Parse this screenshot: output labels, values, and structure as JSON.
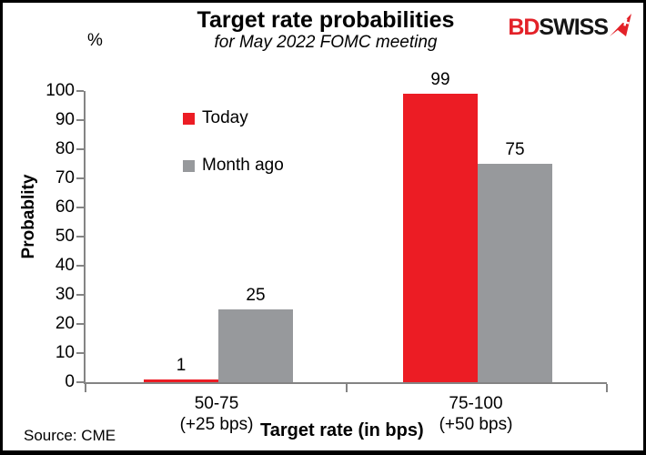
{
  "header": {
    "title": "Target rate probabilities",
    "subtitle": "for May 2022 FOMC meeting"
  },
  "logo": {
    "part1": "BD",
    "part2": "SWISS",
    "part1_color": "#e32128",
    "part2_color": "#151515"
  },
  "chart_data": {
    "type": "bar",
    "title": "Target rate probabilities",
    "subtitle": "for May 2022 FOMC meeting",
    "unit_label": "%",
    "ylabel": "Probablity",
    "xlabel": "Target rate (in bps)",
    "ylim": [
      0,
      100
    ],
    "ytick_step": 10,
    "ytick_labels": [
      "0",
      "10",
      "20",
      "30",
      "40",
      "50",
      "60",
      "70",
      "80",
      "90",
      "100"
    ],
    "grid": false,
    "legend_position": "inside-upper-left",
    "axis_color": "#848484",
    "categories": [
      {
        "line1": "50-75",
        "line2": "(+25 bps)"
      },
      {
        "line1": "75-100",
        "line2": "(+50 bps)"
      }
    ],
    "series": [
      {
        "name": "Today",
        "color": "#ec1c24",
        "values": [
          1,
          99
        ]
      },
      {
        "name": "Month ago",
        "color": "#97999c",
        "values": [
          25,
          75
        ]
      }
    ]
  },
  "source": "Source: CME"
}
